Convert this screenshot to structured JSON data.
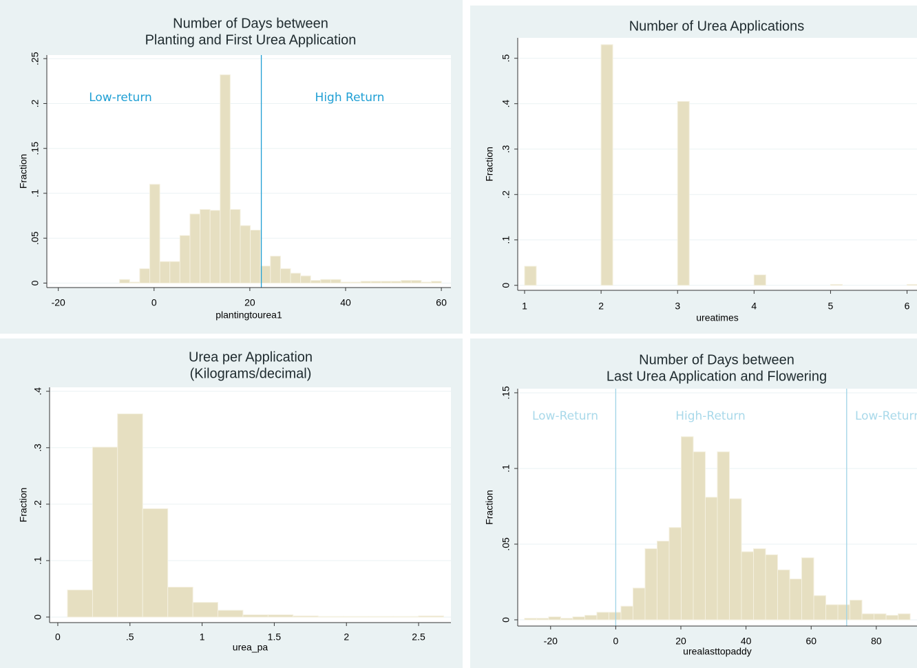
{
  "chart_data": [
    {
      "type": "histogram",
      "title": [
        "Number of Days between",
        "Planting and First Urea Application"
      ],
      "x_label": "plantingtourea1",
      "y_label": "Fraction",
      "bins": [
        -7.2,
        -5.1,
        -3,
        -0.9,
        1.2,
        3.3,
        5.4,
        7.5,
        9.6,
        11.7,
        13.8,
        15.9,
        18,
        20.1,
        22.2,
        24.3,
        26.4,
        28.5,
        30.6,
        32.7,
        34.8,
        36.9,
        39,
        41.1,
        43.2,
        45.3,
        47.4,
        49.5,
        51.6,
        53.7,
        55.8,
        57.9,
        60
      ],
      "values": [
        0.004,
        0.001,
        0.016,
        0.11,
        0.024,
        0.024,
        0.053,
        0.077,
        0.082,
        0.081,
        0.232,
        0.082,
        0.064,
        0.059,
        0.019,
        0.03,
        0.016,
        0.011,
        0.008,
        0.003,
        0.004,
        0.004,
        0.001,
        0.001,
        0.002,
        0.002,
        0.002,
        0.002,
        0.003,
        0.003,
        0.001,
        0.002
      ],
      "color": "#e6dfc1",
      "xlim": [
        -22.4,
        62
      ],
      "ylim": [
        -0.005,
        0.254
      ],
      "xticks": [
        -20,
        0,
        20,
        40,
        60
      ],
      "yticks": [
        0,
        {
          "value": 0.05,
          "label": ".05"
        },
        {
          "value": 0.1,
          "label": ".1"
        },
        {
          "value": 0.15,
          "label": ".15"
        },
        {
          "value": 0.2,
          "label": ".2"
        },
        {
          "value": 0.25,
          "label": ".25"
        }
      ],
      "vlines": [
        22.4
      ],
      "vline_color": "#1f9fd4",
      "grid": true,
      "annotations": [
        "Low-return",
        "High Return"
      ],
      "annotation_color": "#1f9fd4"
    },
    {
      "type": "bar",
      "title": [
        "Number of Urea Applications"
      ],
      "x_label": "ureatimes",
      "y_label": "Fraction",
      "x": [
        1,
        2,
        3,
        4,
        5,
        6
      ],
      "values": [
        0.042,
        0.53,
        0.405,
        0.023,
        0.002,
        0.002
      ],
      "color": "#e6dfc1",
      "xlim": [
        0.91,
        6.13
      ],
      "ylim": [
        -0.011,
        0.545
      ],
      "xticks": [
        1,
        2,
        3,
        4,
        5,
        6
      ],
      "yticks": [
        0,
        {
          "value": 0.1,
          "label": ".1"
        },
        {
          "value": 0.2,
          "label": ".2"
        },
        {
          "value": 0.3,
          "label": ".3"
        },
        {
          "value": 0.4,
          "label": ".4"
        },
        {
          "value": 0.5,
          "label": ".5"
        }
      ],
      "grid": true
    },
    {
      "type": "histogram",
      "title": [
        "Urea per Application",
        "(Kilograms/decimal)"
      ],
      "x_label": "urea_pa",
      "y_label": "Fraction",
      "bins": [
        0.067,
        0.241,
        0.414,
        0.588,
        0.762,
        0.936,
        1.109,
        1.283,
        1.457,
        1.63,
        1.804,
        1.978,
        2.151,
        2.325,
        2.499,
        2.673
      ],
      "values": [
        0.048,
        0.301,
        0.36,
        0.192,
        0.053,
        0.026,
        0.012,
        0.004,
        0.004,
        0.002,
        0.001,
        0.001,
        0.001,
        0.001,
        0.002
      ],
      "color": "#e6dfc1",
      "xlim": [
        -0.057,
        2.724
      ],
      "ylim": [
        -0.0098,
        0.407
      ],
      "xticks": [
        0,
        {
          "value": 0.5,
          "label": ".5"
        },
        1,
        1.5,
        2,
        2.5
      ],
      "yticks": [
        0,
        {
          "value": 0.1,
          "label": ".1"
        },
        {
          "value": 0.2,
          "label": ".2"
        },
        {
          "value": 0.3,
          "label": ".3"
        },
        {
          "value": 0.4,
          "label": ".4"
        }
      ],
      "grid": true
    },
    {
      "type": "histogram",
      "title": [
        "Number of Days between",
        "Last Urea Application and Flowering"
      ],
      "x_label": "urealasttopaddy",
      "y_label": "Fraction",
      "bins": [
        -28,
        -24.3,
        -20.6,
        -16.9,
        -13.2,
        -9.5,
        -5.8,
        -2.1,
        1.6,
        5.3,
        9,
        12.7,
        16.4,
        20.1,
        23.8,
        27.5,
        31.2,
        34.9,
        38.6,
        42.3,
        46,
        49.7,
        53.4,
        57.1,
        60.8,
        64.5,
        68.2,
        71.9,
        75.6,
        79.3,
        83,
        86.7,
        90.4
      ],
      "values": [
        0.001,
        0.001,
        0.002,
        0.001,
        0.002,
        0.003,
        0.005,
        0.005,
        0.009,
        0.021,
        0.047,
        0.052,
        0.061,
        0.121,
        0.111,
        0.081,
        0.111,
        0.08,
        0.045,
        0.047,
        0.043,
        0.033,
        0.027,
        0.041,
        0.016,
        0.01,
        0.01,
        0.013,
        0.004,
        0.004,
        0.003,
        0.004
      ],
      "color": "#e6dfc1",
      "xlim": [
        -30.1,
        92.5
      ],
      "ylim": [
        -0.0041,
        0.1527
      ],
      "xticks": [
        -20,
        0,
        20,
        40,
        60,
        80
      ],
      "yticks": [
        0,
        {
          "value": 0.05,
          "label": ".05"
        },
        {
          "value": 0.1,
          "label": ".1"
        },
        {
          "value": 0.15,
          "label": ".15"
        }
      ],
      "vlines": [
        0,
        70.9
      ],
      "vline_color": "#9fd3e6",
      "grid": true,
      "annotations": [
        "Low-Return",
        "High-Return",
        "Low-Return"
      ],
      "annotation_color": "#a9d9ea"
    }
  ]
}
